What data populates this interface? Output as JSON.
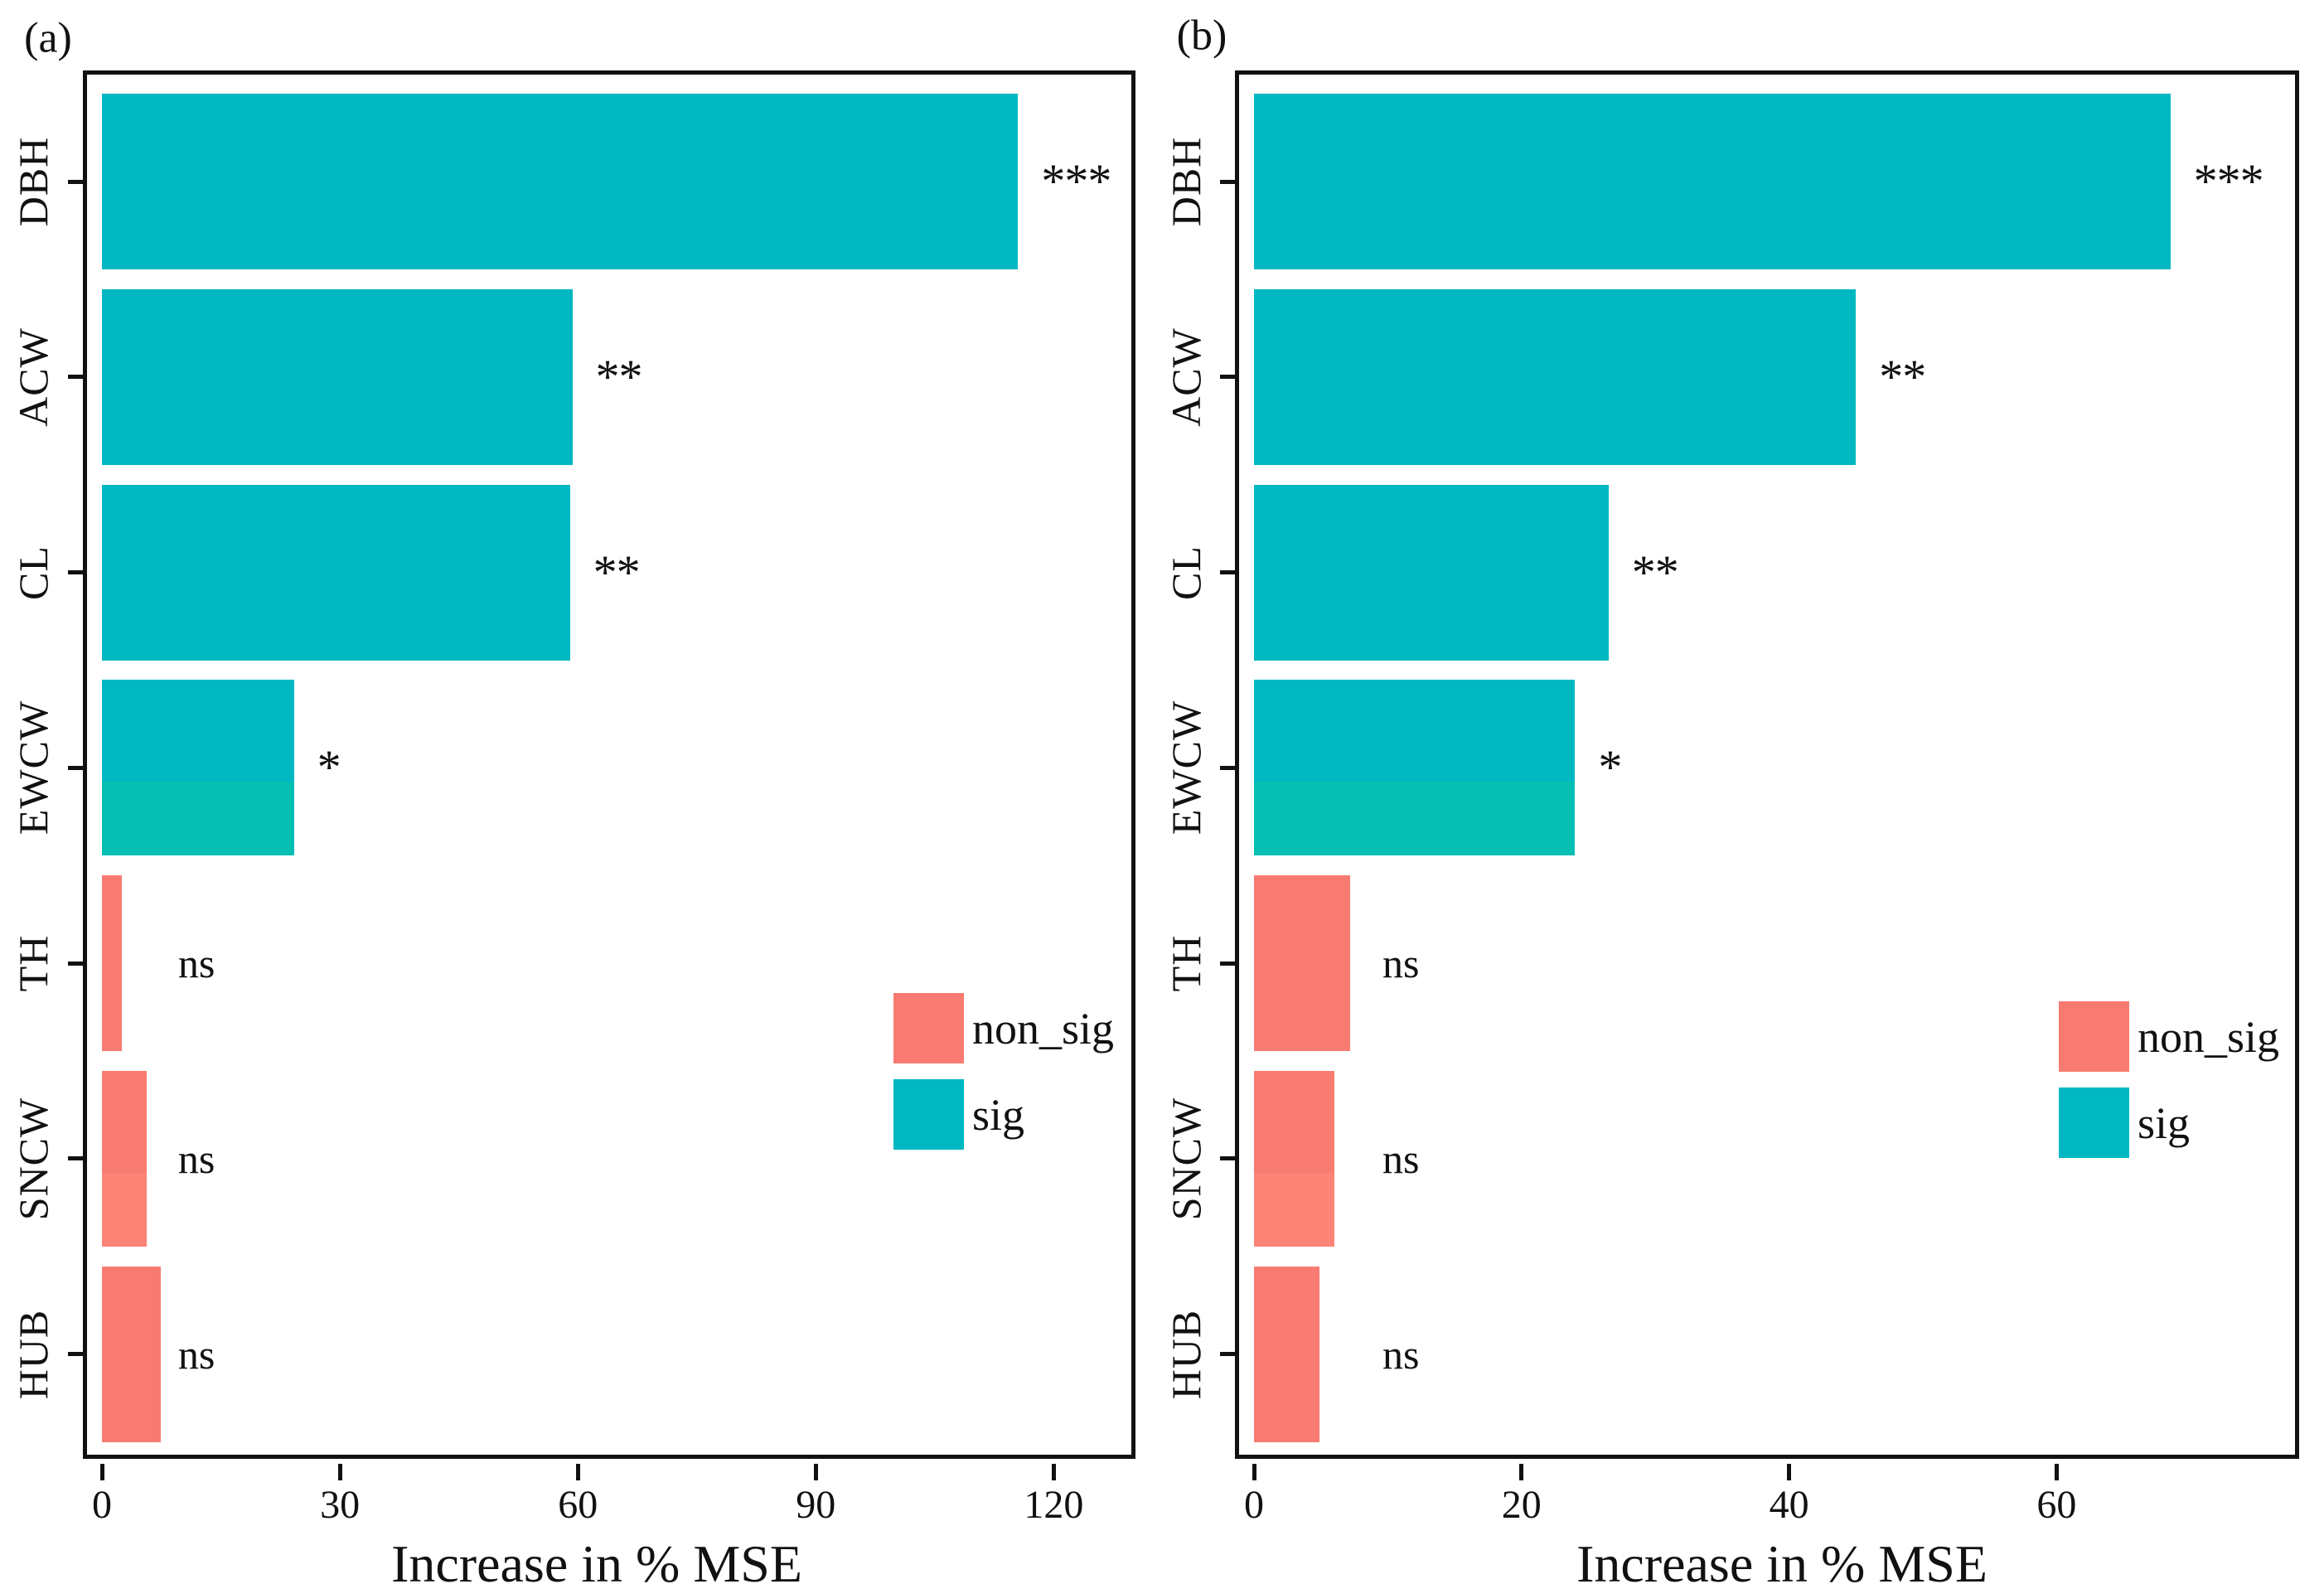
{
  "figure": {
    "background": "#ffffff",
    "axis_color": "#111111",
    "text_color": "#111111"
  },
  "colors": {
    "sig": "#00b8c2",
    "sig_alt": "#05bfb2",
    "non_sig": "#f87b71",
    "non_sig_alt": "#fb8477"
  },
  "legend": {
    "items": [
      {
        "key": "non_sig",
        "label": "non_sig"
      },
      {
        "key": "sig",
        "label": "sig"
      }
    ]
  },
  "chart_data": [
    {
      "type": "bar",
      "orientation": "horizontal",
      "panel_label": "(a)",
      "title": "",
      "xlabel": "Increase in % MSE",
      "ylabel": "",
      "categories": [
        "DBH",
        "ACW",
        "CL",
        "EWCW",
        "TH",
        "SNCW",
        "HUB"
      ],
      "values": [
        115.5,
        59.3,
        59.0,
        24.2,
        2.5,
        5.6,
        7.4
      ],
      "significance": [
        "***",
        "**",
        "**",
        "*",
        "ns",
        "ns",
        "ns"
      ],
      "groups": [
        "sig",
        "sig",
        "sig",
        "sig",
        "non_sig",
        "non_sig",
        "non_sig"
      ],
      "bar_styles": [
        "solid",
        "solid",
        "solid",
        "split",
        "solid",
        "split",
        "solid"
      ],
      "x_ticks": [
        0,
        30,
        60,
        90,
        120
      ],
      "x_tick_labels": [
        "0",
        "30",
        "60",
        "90",
        "120"
      ],
      "xlim": [
        -2.4,
        130.3
      ],
      "grid": false,
      "legend_entries": [
        "non_sig",
        "sig"
      ],
      "legend_position": "inside-right-middle"
    },
    {
      "type": "bar",
      "orientation": "horizontal",
      "panel_label": "(b)",
      "title": "",
      "xlabel": "Increase in % MSE",
      "ylabel": "",
      "categories": [
        "DBH",
        "ACW",
        "CL",
        "EWCW",
        "TH",
        "SNCW",
        "HUB"
      ],
      "values": [
        68.5,
        45.0,
        26.5,
        24.0,
        7.2,
        6.0,
        4.9
      ],
      "significance": [
        "***",
        "**",
        "**",
        "*",
        "ns",
        "ns",
        "ns"
      ],
      "groups": [
        "sig",
        "sig",
        "sig",
        "sig",
        "non_sig",
        "non_sig",
        "non_sig"
      ],
      "bar_styles": [
        "solid",
        "solid",
        "solid",
        "split",
        "solid",
        "split",
        "solid"
      ],
      "x_ticks": [
        0,
        20,
        40,
        60
      ],
      "x_tick_labels": [
        "0",
        "20",
        "40",
        "60"
      ],
      "xlim": [
        -1.4,
        78.1
      ],
      "grid": false,
      "legend_entries": [
        "non_sig",
        "sig"
      ],
      "legend_position": "inside-right-middle"
    }
  ]
}
